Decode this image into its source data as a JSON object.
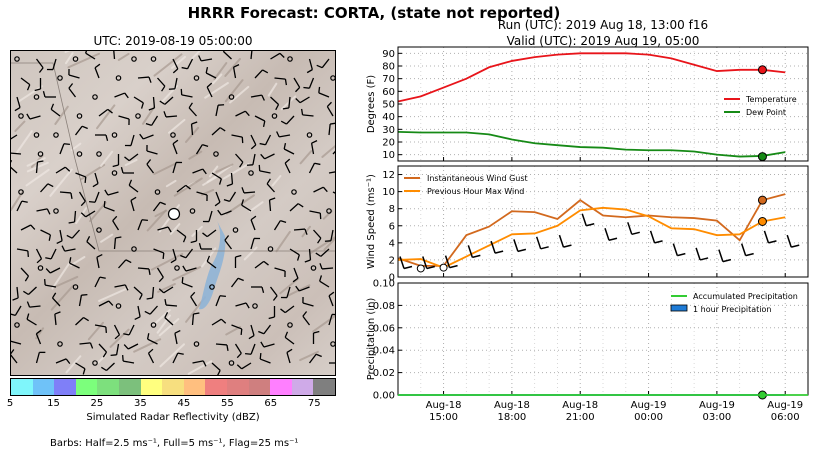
{
  "header": {
    "title": "HRRR Forecast: CORTA, (state not reported)",
    "run_line": "Run (UTC): 2019 Aug 18, 13:00 f16",
    "valid_line": "Valid (UTC): 2019 Aug 19, 05:00"
  },
  "map": {
    "title": "UTC: 2019-08-19 05:00:00",
    "colorbar_colors": [
      "#7ff6fb",
      "#6fc2f8",
      "#7f7ff8",
      "#7cff7c",
      "#7de07d",
      "#7cc07c",
      "#ffff7f",
      "#f7df7f",
      "#ffbf7f",
      "#ef7f7f",
      "#df7f7f",
      "#cf7f7f",
      "#ff7fff",
      "#cfaae8",
      "#7f7f7f"
    ],
    "colorbar_ticks": [
      "5",
      "15",
      "25",
      "35",
      "45",
      "55",
      "65",
      "75"
    ],
    "colorbar_label": "Simulated Radar Reflectivity (dBZ)",
    "barb_note": "Barbs: Half=2.5 ms⁻¹, Full=5 ms⁻¹, Flag=25 ms⁻¹"
  },
  "chart_data": [
    {
      "type": "line",
      "ylabel": "Degrees (F)",
      "ylim": [
        5,
        95
      ],
      "yticks": [
        10,
        20,
        30,
        40,
        50,
        60,
        70,
        80,
        90
      ],
      "x": [
        13,
        14,
        15,
        16,
        17,
        18,
        19,
        20,
        21,
        22,
        23,
        24,
        25,
        26,
        27,
        28,
        29,
        30
      ],
      "xlim": [
        13,
        31
      ],
      "xticks": [
        15,
        18,
        21,
        24,
        27,
        30
      ],
      "xticklabels": [
        "Aug-18\n15:00",
        "Aug-18\n18:00",
        "Aug-18\n21:00",
        "Aug-19\n00:00",
        "Aug-19\n03:00",
        "Aug-19\n06:00"
      ],
      "grid": true,
      "legend_position": "right",
      "series": [
        {
          "name": "Temperature",
          "color": "#e8141a",
          "values": [
            52,
            56,
            63,
            70,
            79,
            84,
            87,
            89,
            90,
            90,
            90,
            89,
            86,
            81,
            76,
            77,
            77,
            75
          ]
        },
        {
          "name": "Dew Point",
          "color": "#168a16",
          "values": [
            28,
            27.5,
            27.5,
            27.5,
            26,
            22,
            19,
            17.5,
            16,
            15.5,
            14,
            13.5,
            13.5,
            12.5,
            10,
            8.5,
            9,
            12
          ]
        }
      ],
      "marker_index": 29,
      "marker_values": [
        77,
        8.5
      ]
    },
    {
      "type": "line",
      "ylabel": "Wind Speed (ms⁻¹)",
      "ylim": [
        0,
        13
      ],
      "yticks": [
        0,
        2,
        4,
        6,
        8,
        10,
        12
      ],
      "x": [
        13,
        14,
        15,
        16,
        17,
        18,
        19,
        20,
        21,
        22,
        23,
        24,
        25,
        26,
        27,
        28,
        29,
        30
      ],
      "xlim": [
        13,
        31
      ],
      "xticks": [
        15,
        18,
        21,
        24,
        27,
        30
      ],
      "grid": true,
      "legend_position": "top-left",
      "series": [
        {
          "name": "Instantaneous Wind Gust",
          "color": "#d2691e",
          "values": [
            2.2,
            1.3,
            1.3,
            4.9,
            5.9,
            7.7,
            7.6,
            6.8,
            9.0,
            7.2,
            7.0,
            7.2,
            7.0,
            6.9,
            6.6,
            4.3,
            9.0,
            9.7
          ]
        },
        {
          "name": "Previous Hour Max Wind",
          "color": "#ff8c00",
          "values": [
            2.0,
            2.1,
            1.1,
            2.4,
            3.7,
            5.0,
            5.1,
            6.0,
            7.8,
            8.1,
            7.9,
            7.1,
            5.7,
            5.6,
            4.9,
            5.0,
            6.5,
            7.0
          ]
        },
        {
          "name": "",
          "color": "#000000",
          "values": [
            1.0,
            1.0,
            1.1,
            2.3,
            2.8,
            3.0,
            3.3,
            3.5,
            6.0,
            4.3,
            5.0,
            4.0,
            2.5,
            2.0,
            1.8,
            2.5,
            4.0,
            3.5
          ]
        }
      ],
      "marker_index": 29,
      "marker_values": [
        9.0,
        6.5
      ]
    },
    {
      "type": "line",
      "ylabel": "Precipitation (in)",
      "ylim": [
        0,
        0.1
      ],
      "yticks": [
        0.0,
        0.02,
        0.04,
        0.06,
        0.08,
        0.1
      ],
      "yticklabels": [
        "0.00",
        "0.02",
        "0.04",
        "0.06",
        "0.08",
        "0.10"
      ],
      "x": [
        13,
        30
      ],
      "xlim": [
        13,
        31
      ],
      "xticks": [
        15,
        18,
        21,
        24,
        27,
        30
      ],
      "grid": true,
      "legend_position": "top-right",
      "series": [
        {
          "name": "Accumulated Precipitation",
          "color": "#33cc33",
          "values": [
            0.0,
            0.0
          ]
        },
        {
          "name": "1 hour Precipitation",
          "color": "#1e7bd6",
          "values": [
            0.0,
            0.0
          ]
        }
      ],
      "marker_index": 29,
      "marker_values": [
        0.0
      ]
    }
  ]
}
